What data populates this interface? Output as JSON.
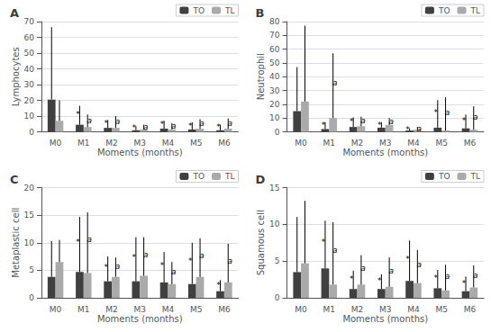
{
  "chart_data": [
    {
      "type": "bar",
      "title": "A",
      "ylabel": "Lymphocytes",
      "xlabel": "Moments (months)",
      "categories": [
        "M0",
        "M1",
        "M2",
        "M3",
        "M4",
        "M5",
        "M6"
      ],
      "series": [
        {
          "name": "TO",
          "color": "#404040",
          "values": [
            20.5,
            4.5,
            2.5,
            1.0,
            2.0,
            1.5,
            1.0
          ],
          "error": [
            46.0,
            12.0,
            5.0,
            2.5,
            5.0,
            4.5,
            3.5
          ],
          "significance_label": "*",
          "significant": [
            false,
            true,
            true,
            true,
            true,
            true,
            true
          ]
        },
        {
          "name": "TL",
          "color": "#aaaaaa",
          "values": [
            7.0,
            3.0,
            2.5,
            1.5,
            1.5,
            2.0,
            2.0
          ],
          "error": [
            13.0,
            8.0,
            7.5,
            3.0,
            4.0,
            6.0,
            6.5
          ],
          "significance_label": "a",
          "significant": [
            false,
            true,
            true,
            true,
            true,
            true,
            true
          ]
        }
      ],
      "ylim": [
        0,
        70
      ],
      "yticks": [
        0,
        10,
        20,
        30,
        40,
        50,
        60,
        70
      ],
      "grid": true,
      "legend": "upper right"
    },
    {
      "type": "bar",
      "title": "B",
      "ylabel": "Neutrophil",
      "xlabel": "Moments (months)",
      "categories": [
        "M0",
        "M1",
        "M2",
        "M3",
        "M4",
        "M5",
        "M6"
      ],
      "series": [
        {
          "name": "TO",
          "color": "#404040",
          "values": [
            15.0,
            2.0,
            3.5,
            3.0,
            1.0,
            3.0,
            2.5
          ],
          "error": [
            32.0,
            5.0,
            7.0,
            4.0,
            1.5,
            20.0,
            10.0
          ],
          "significance_label": "*",
          "significant": [
            false,
            true,
            true,
            true,
            true,
            true,
            true
          ]
        },
        {
          "name": "TL",
          "color": "#aaaaaa",
          "values": [
            22.0,
            10.0,
            4.0,
            5.0,
            1.5,
            1.0,
            1.5
          ],
          "error": [
            55.0,
            47.0,
            7.0,
            5.0,
            2.0,
            24.0,
            17.0
          ],
          "significance_label": "a",
          "significant": [
            false,
            true,
            true,
            true,
            true,
            true,
            true
          ]
        }
      ],
      "ylim": [
        0,
        80
      ],
      "yticks": [
        0,
        10,
        20,
        30,
        40,
        50,
        60,
        70,
        80
      ],
      "grid": true,
      "legend": "upper right"
    },
    {
      "type": "bar",
      "title": "C",
      "ylabel": "Metaplastic cell",
      "xlabel": "Moments (months)",
      "categories": [
        "M0",
        "M1",
        "M2",
        "M3",
        "M4",
        "M5",
        "M6"
      ],
      "series": [
        {
          "name": "TO",
          "color": "#404040",
          "values": [
            3.8,
            4.7,
            3.0,
            3.0,
            2.8,
            2.5,
            1.2
          ],
          "error": [
            6.5,
            10.0,
            4.5,
            8.0,
            5.5,
            7.5,
            2.0
          ],
          "significance_label": "*",
          "significant": [
            false,
            true,
            true,
            true,
            true,
            true,
            true
          ]
        },
        {
          "name": "TL",
          "color": "#aaaaaa",
          "values": [
            6.5,
            4.5,
            3.8,
            4.0,
            2.5,
            3.8,
            2.8
          ],
          "error": [
            4.0,
            11.0,
            3.5,
            7.0,
            4.0,
            7.0,
            7.0
          ],
          "significance_label": "a",
          "significant": [
            false,
            true,
            true,
            true,
            true,
            true,
            true
          ]
        }
      ],
      "ylim": [
        0,
        20
      ],
      "yticks": [
        0,
        5,
        10,
        15,
        20
      ],
      "grid": true,
      "legend": "upper right"
    },
    {
      "type": "bar",
      "title": "D",
      "ylabel": "Squamous cell",
      "xlabel": "Moments (months)",
      "categories": [
        "M0",
        "M1",
        "M2",
        "M3",
        "M4",
        "M5",
        "M6"
      ],
      "series": [
        {
          "name": "TO",
          "color": "#404040",
          "values": [
            3.5,
            4.0,
            1.2,
            1.2,
            2.3,
            1.3,
            0.9
          ],
          "error": [
            7.5,
            6.5,
            2.5,
            2.0,
            5.5,
            2.5,
            2.0
          ],
          "significance_label": "*",
          "significant": [
            false,
            true,
            true,
            true,
            true,
            true,
            true
          ]
        },
        {
          "name": "TL",
          "color": "#aaaaaa",
          "values": [
            4.7,
            1.8,
            1.8,
            1.5,
            2.0,
            1.0,
            1.4
          ],
          "error": [
            8.5,
            8.5,
            4.0,
            4.0,
            4.5,
            3.5,
            3.0
          ],
          "significance_label": "a",
          "significant": [
            false,
            true,
            true,
            true,
            true,
            true,
            true
          ]
        }
      ],
      "ylim": [
        0,
        15
      ],
      "yticks": [
        0,
        5,
        10,
        15
      ],
      "grid": true,
      "legend": "upper right"
    }
  ]
}
